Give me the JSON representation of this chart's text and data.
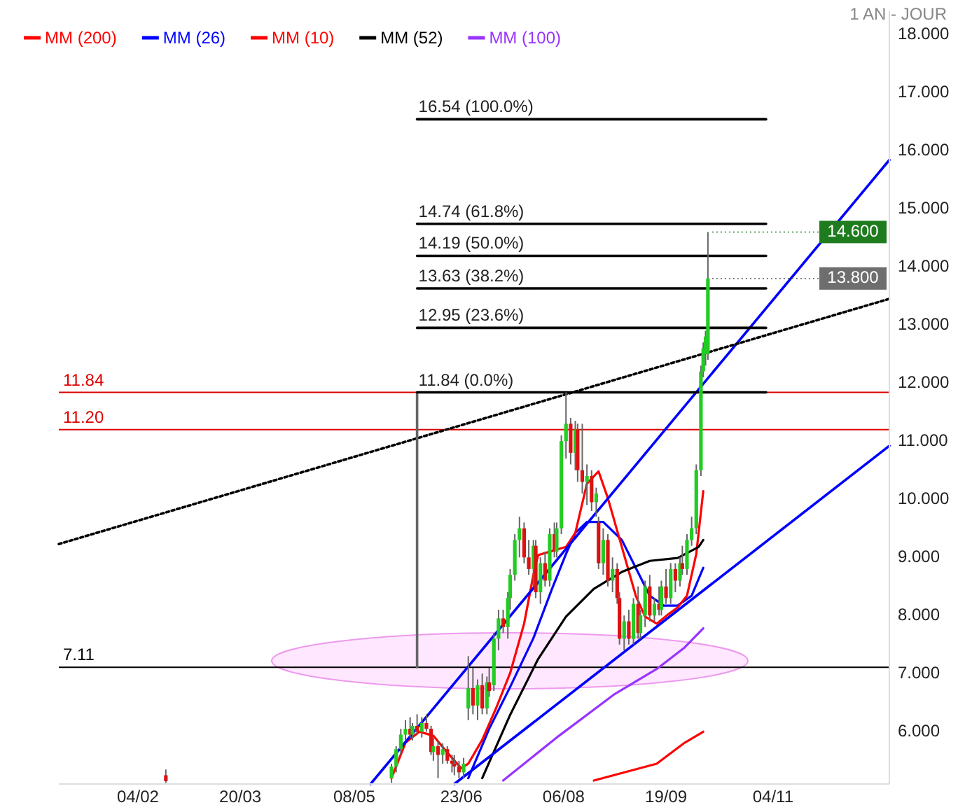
{
  "chart_data": {
    "type": "candlestick",
    "subtitle": "1 AN - JOUR",
    "xlim": [
      "--01-01",
      "--12-24"
    ],
    "ylim": [
      5.1,
      18.4
    ],
    "xticks": [
      {
        "value": "--02-04",
        "label": "04/02"
      },
      {
        "value": "--03-20",
        "label": "20/03"
      },
      {
        "value": "--05-08",
        "label": "08/05"
      },
      {
        "value": "--06-23",
        "label": "23/06"
      },
      {
        "value": "--08-06",
        "label": "06/08"
      },
      {
        "value": "--09-19",
        "label": "19/09"
      },
      {
        "value": "--11-04",
        "label": "04/11"
      }
    ],
    "yticks": [
      {
        "value": 6,
        "label": "6.000"
      },
      {
        "value": 7,
        "label": "7.000"
      },
      {
        "value": 8,
        "label": "8.000"
      },
      {
        "value": 9,
        "label": "9.000"
      },
      {
        "value": 10,
        "label": "10.000"
      },
      {
        "value": 11,
        "label": "11.000"
      },
      {
        "value": 12,
        "label": "12.000"
      },
      {
        "value": 13,
        "label": "13.000"
      },
      {
        "value": 14,
        "label": "14.000"
      },
      {
        "value": 15,
        "label": "15.000"
      },
      {
        "value": 16,
        "label": "16.000"
      },
      {
        "value": 17,
        "label": "17.000"
      },
      {
        "value": 18,
        "label": "18.000"
      }
    ],
    "x": [
      "--02-16",
      "--05-24",
      "--05-26",
      "--05-28",
      "--05-30",
      "--06-01",
      "--06-02",
      "--06-04",
      "--06-06",
      "--06-08",
      "--06-10",
      "--06-11",
      "--06-13",
      "--06-15",
      "--06-17",
      "--06-19",
      "--06-20",
      "--06-22",
      "--06-24",
      "--06-26",
      "--06-28",
      "--06-30",
      "--07-02",
      "--07-04",
      "--07-05",
      "--07-07",
      "--07-09",
      "--07-11",
      "--07-13",
      "--07-14",
      "--07-16",
      "--07-18",
      "--07-20",
      "--07-22",
      "--07-24",
      "--07-25",
      "--07-27",
      "--07-29",
      "--07-31",
      "--08-02",
      "--08-03",
      "--08-05",
      "--08-07",
      "--08-09",
      "--08-11",
      "--08-12",
      "--08-14",
      "--08-16",
      "--08-18",
      "--08-20",
      "--08-21",
      "--08-23",
      "--08-25",
      "--08-27",
      "--08-29",
      "--08-30",
      "--09-01",
      "--09-03",
      "--09-05",
      "--09-07",
      "--09-08",
      "--09-10",
      "--09-12",
      "--09-14",
      "--09-16",
      "--09-17",
      "--09-19",
      "--09-21",
      "--09-23",
      "--09-25",
      "--09-26",
      "--09-28",
      "--09-30",
      "--10-02",
      "--10-04",
      "--10-05",
      "--10-06",
      "--10-07"
    ],
    "ohlc": [
      [
        5.25,
        5.35,
        5.12,
        5.15
      ],
      [
        5.2,
        5.45,
        5.12,
        5.4
      ],
      [
        5.4,
        5.75,
        5.3,
        5.7
      ],
      [
        5.7,
        6.05,
        5.6,
        5.95
      ],
      [
        5.95,
        6.2,
        5.85,
        6.05
      ],
      [
        6.05,
        6.25,
        5.9,
        5.95
      ],
      [
        5.95,
        6.15,
        5.85,
        6.1
      ],
      [
        6.1,
        6.3,
        5.95,
        6.0
      ],
      [
        6.0,
        6.25,
        5.9,
        6.15
      ],
      [
        6.15,
        6.3,
        6.0,
        6.05
      ],
      [
        6.05,
        6.1,
        5.6,
        5.65
      ],
      [
        5.65,
        5.9,
        5.5,
        5.75
      ],
      [
        5.75,
        5.85,
        5.2,
        5.6
      ],
      [
        5.6,
        5.8,
        5.45,
        5.7
      ],
      [
        5.7,
        5.75,
        5.45,
        5.5
      ],
      [
        5.5,
        5.6,
        5.3,
        5.45
      ],
      [
        5.45,
        5.6,
        5.25,
        5.4
      ],
      [
        5.4,
        5.5,
        5.2,
        5.3
      ],
      [
        5.3,
        5.55,
        5.2,
        5.45
      ],
      [
        6.4,
        7.3,
        6.2,
        6.75
      ],
      [
        6.75,
        7.1,
        6.3,
        6.45
      ],
      [
        6.45,
        6.9,
        6.2,
        6.8
      ],
      [
        6.8,
        7.0,
        6.3,
        6.4
      ],
      [
        6.4,
        6.95,
        6.3,
        6.85
      ],
      [
        6.85,
        7.1,
        6.6,
        6.7
      ],
      [
        6.8,
        7.7,
        6.7,
        7.6
      ],
      [
        7.6,
        8.1,
        7.4,
        7.95
      ],
      [
        7.95,
        8.1,
        7.7,
        7.8
      ],
      [
        7.8,
        8.4,
        7.6,
        8.3
      ],
      [
        8.3,
        8.8,
        8.1,
        8.7
      ],
      [
        8.7,
        9.4,
        8.6,
        9.3
      ],
      [
        9.3,
        9.7,
        9.0,
        9.5
      ],
      [
        9.5,
        9.6,
        8.9,
        9.0
      ],
      [
        9.0,
        9.3,
        8.7,
        8.8
      ],
      [
        8.8,
        9.3,
        8.5,
        9.2
      ],
      [
        9.2,
        9.3,
        8.3,
        8.4
      ],
      [
        8.4,
        9.0,
        8.2,
        8.9
      ],
      [
        8.9,
        9.1,
        8.5,
        8.6
      ],
      [
        8.6,
        9.5,
        8.5,
        9.4
      ],
      [
        9.4,
        9.6,
        9.0,
        9.1
      ],
      [
        9.1,
        9.6,
        9.0,
        9.5
      ],
      [
        9.5,
        11.1,
        9.4,
        11.0
      ],
      [
        11.0,
        11.84,
        10.7,
        11.3
      ],
      [
        11.3,
        11.4,
        10.6,
        10.8
      ],
      [
        10.8,
        11.35,
        10.5,
        11.2
      ],
      [
        11.2,
        11.3,
        10.3,
        10.5
      ],
      [
        10.5,
        11.3,
        10.1,
        10.3
      ],
      [
        10.3,
        10.6,
        9.9,
        10.4
      ],
      [
        10.4,
        10.5,
        9.8,
        9.95
      ],
      [
        9.95,
        10.2,
        9.7,
        10.1
      ],
      [
        9.6,
        9.7,
        8.8,
        8.9
      ],
      [
        8.9,
        9.5,
        8.7,
        9.3
      ],
      [
        9.3,
        9.4,
        8.5,
        8.6
      ],
      [
        8.6,
        9.0,
        8.4,
        8.8
      ],
      [
        8.8,
        8.9,
        8.2,
        8.3
      ],
      [
        8.3,
        8.4,
        7.5,
        7.6
      ],
      [
        7.6,
        8.0,
        7.4,
        7.9
      ],
      [
        7.9,
        8.1,
        7.5,
        7.6
      ],
      [
        7.6,
        8.3,
        7.5,
        8.2
      ],
      [
        8.2,
        8.5,
        7.6,
        7.7
      ],
      [
        7.7,
        8.1,
        7.6,
        8.0
      ],
      [
        8.0,
        8.6,
        7.8,
        8.5
      ],
      [
        8.5,
        8.7,
        7.9,
        8.0
      ],
      [
        8.0,
        8.3,
        7.9,
        8.2
      ],
      [
        8.2,
        8.5,
        8.0,
        8.1
      ],
      [
        8.1,
        8.6,
        8.0,
        8.5
      ],
      [
        8.5,
        8.8,
        8.2,
        8.3
      ],
      [
        8.3,
        8.9,
        8.2,
        8.8
      ],
      [
        8.8,
        8.9,
        8.4,
        8.6
      ],
      [
        8.6,
        9.0,
        8.5,
        8.9
      ],
      [
        8.9,
        9.2,
        8.7,
        8.8
      ],
      [
        8.8,
        9.4,
        8.7,
        9.3
      ],
      [
        9.3,
        9.7,
        9.2,
        9.5
      ],
      [
        9.5,
        10.6,
        9.4,
        10.5
      ],
      [
        10.5,
        12.3,
        10.4,
        12.2
      ],
      [
        12.2,
        12.7,
        12.1,
        12.6
      ],
      [
        12.5,
        12.9,
        12.3,
        12.8
      ],
      [
        12.5,
        14.6,
        12.4,
        13.8
      ]
    ],
    "series": [
      {
        "type": "line",
        "name": "MM (200)",
        "color": "#ff0000",
        "x": [
          "--08-19",
          "--09-15",
          "--09-27",
          "--10-05"
        ],
        "values": [
          5.16,
          5.45,
          5.81,
          6.0
        ]
      },
      {
        "type": "line",
        "name": "MM (26)",
        "color": "#0000ff",
        "x": [
          "--06-26",
          "--07-05",
          "--07-14",
          "--07-24",
          "--08-01",
          "--08-07",
          "--08-11",
          "--08-16",
          "--08-23",
          "--08-31",
          "--09-06",
          "--09-12",
          "--09-18",
          "--09-24",
          "--09-30",
          "--10-05"
        ],
        "values": [
          5.2,
          6.05,
          6.77,
          7.61,
          8.46,
          9.06,
          9.42,
          9.61,
          9.61,
          9.3,
          8.82,
          8.34,
          8.17,
          8.17,
          8.34,
          8.82
        ]
      },
      {
        "type": "line",
        "name": "MM (10)",
        "color": "#ff0000",
        "x": [
          "--05-24",
          "--05-30",
          "--06-05",
          "--06-11",
          "--06-17",
          "--06-23",
          "--06-26",
          "--07-02",
          "--07-08",
          "--07-14",
          "--07-20",
          "--07-24",
          "--07-26",
          "--08-01",
          "--08-07",
          "--08-11",
          "--08-16",
          "--08-21",
          "--08-25",
          "--08-31",
          "--09-06",
          "--09-10",
          "--09-15",
          "--09-20",
          "--09-24",
          "--09-28",
          "--10-02",
          "--10-05"
        ],
        "values": [
          5.2,
          5.81,
          6.0,
          5.93,
          5.64,
          5.37,
          5.45,
          5.86,
          6.41,
          7.01,
          7.86,
          8.7,
          9.04,
          9.11,
          9.18,
          9.42,
          10.27,
          10.48,
          10.02,
          9.18,
          8.34,
          7.98,
          7.86,
          8.02,
          8.14,
          8.34,
          9.06,
          10.14
        ]
      },
      {
        "type": "line",
        "name": "MM (52)",
        "color": "#000000",
        "x": [
          "--07-02",
          "--07-14",
          "--07-26",
          "--08-07",
          "--08-19",
          "--08-31",
          "--09-12",
          "--09-24",
          "--10-03",
          "--10-05"
        ],
        "values": [
          5.2,
          6.29,
          7.25,
          7.98,
          8.46,
          8.75,
          8.94,
          8.99,
          9.18,
          9.3
        ]
      },
      {
        "type": "line",
        "name": "MM (100)",
        "color": "#9933ff",
        "x": [
          "--07-11",
          "--08-04",
          "--08-28",
          "--09-15",
          "--09-27",
          "--10-05"
        ],
        "values": [
          5.16,
          5.93,
          6.65,
          7.08,
          7.45,
          7.78
        ]
      },
      {
        "type": "line",
        "color": "#0000ff",
        "x": [
          "--05-15",
          "--12-24"
        ],
        "values": [
          5.1,
          15.84
        ]
      },
      {
        "type": "line",
        "color": "#0000ff",
        "x": [
          "--06-20",
          "--12-24"
        ],
        "values": [
          5.1,
          10.92
        ]
      },
      {
        "type": "line",
        "color": "#000000",
        "line_style": "dotted",
        "x": [
          "--01-01",
          "--12-24"
        ],
        "values": [
          9.23,
          13.45
        ]
      },
      {
        "type": "line",
        "color": "#666666",
        "x": [
          "--06-04",
          "--06-04"
        ],
        "values": [
          7.11,
          11.84
        ]
      },
      {
        "type": "line",
        "color": "#000000",
        "x": [
          "--06-04",
          "--11-01"
        ],
        "values": [
          16.54,
          16.54
        ]
      },
      {
        "type": "line",
        "color": "#000000",
        "x": [
          "--06-04",
          "--11-01"
        ],
        "values": [
          14.74,
          14.74
        ]
      },
      {
        "type": "line",
        "color": "#000000",
        "x": [
          "--06-04",
          "--11-01"
        ],
        "values": [
          14.19,
          14.19
        ]
      },
      {
        "type": "line",
        "color": "#000000",
        "x": [
          "--06-04",
          "--11-01"
        ],
        "values": [
          13.63,
          13.63
        ]
      },
      {
        "type": "line",
        "color": "#000000",
        "x": [
          "--06-04",
          "--11-01"
        ],
        "values": [
          12.95,
          12.95
        ]
      },
      {
        "type": "line",
        "color": "#000000",
        "x": [
          "--06-04",
          "--11-01"
        ],
        "values": [
          11.84,
          11.84
        ]
      }
    ],
    "ref_lines": [
      {
        "axis": "y",
        "value": 11.84,
        "label": "11.84",
        "color": "#dd0000"
      },
      {
        "axis": "y",
        "value": 11.2,
        "label": "11.20",
        "color": "#dd0000"
      },
      {
        "axis": "y",
        "value": 7.11,
        "label": "7.11",
        "color": "#000000"
      }
    ],
    "annotations": [
      {
        "text": "16.54  (100.0%)",
        "x": "--06-04",
        "y": 16.54
      },
      {
        "text": "14.74  (61.8%)",
        "x": "--06-04",
        "y": 14.74
      },
      {
        "text": "14.19  (50.0%)",
        "x": "--06-04",
        "y": 14.19
      },
      {
        "text": "13.63  (38.2%)",
        "x": "--06-04",
        "y": 13.63
      },
      {
        "text": "12.95  (23.6%)",
        "x": "--06-04",
        "y": 12.95
      },
      {
        "text": "11.84  (0.0%)",
        "x": "--06-04",
        "y": 11.84
      },
      {
        "text": "14.600",
        "x": "--10-07",
        "y": 14.6
      },
      {
        "text": "13.800",
        "x": "--10-07",
        "y": 13.8
      }
    ],
    "legend": "top left"
  }
}
